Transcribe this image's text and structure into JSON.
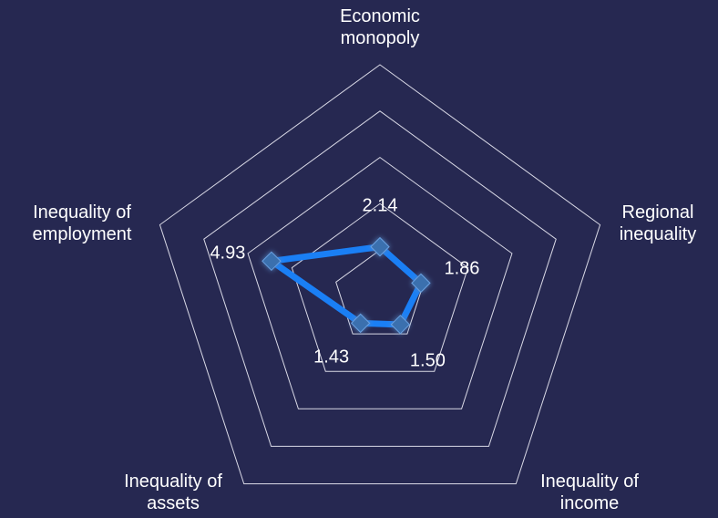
{
  "chart_data": {
    "type": "radar",
    "categories": [
      "Economic monopoly",
      "Regional inequality",
      "Inequality of income",
      "Inequality of assets",
      "Inequality of employment"
    ],
    "values": [
      2.14,
      1.86,
      1.5,
      1.43,
      4.93
    ],
    "value_labels": [
      "2.14",
      "1.86",
      "1.50",
      "1.43",
      "4.93"
    ],
    "color": "#1a7ff5",
    "marker_color": "#3b6fae",
    "ylim": [
      0,
      10
    ],
    "yticks": [
      2,
      4,
      6,
      8,
      10
    ],
    "grid": true
  }
}
